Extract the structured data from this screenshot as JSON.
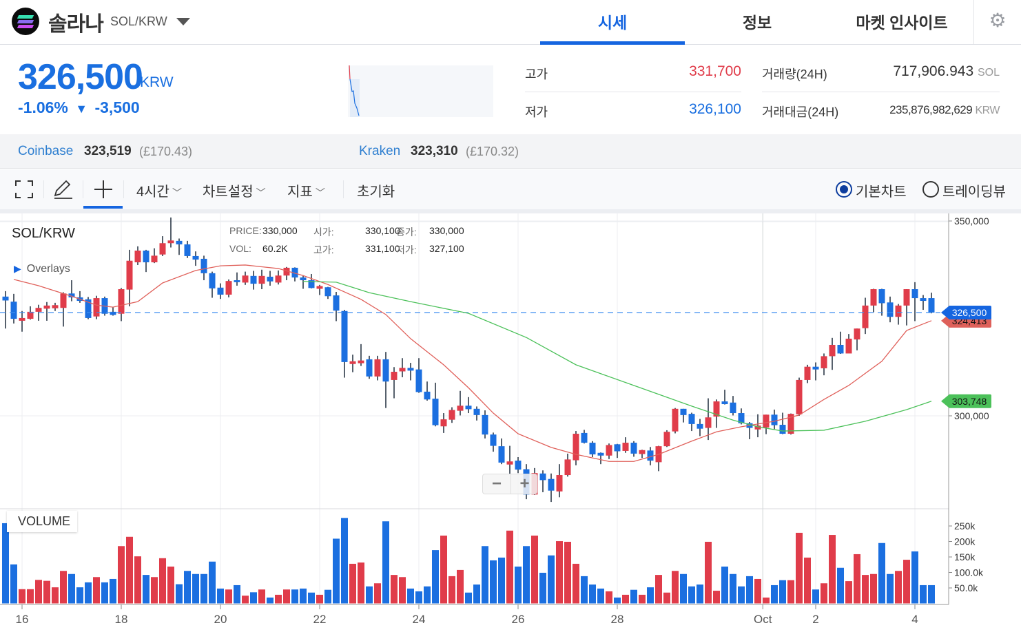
{
  "header": {
    "coin_name": "솔라나",
    "pair": "SOL/KRW",
    "tabs": [
      {
        "label": "시세",
        "active": true
      },
      {
        "label": "정보"
      },
      {
        "label": "마켓 인사이트"
      }
    ],
    "gear_icon": "settings-gear-icon"
  },
  "ticker": {
    "price": "326,500",
    "unit": "KRW",
    "change_pct": "-1.06%",
    "change_arrow": "▼",
    "change_abs": "-3,500",
    "high_label": "고가",
    "high_value": "331,700",
    "low_label": "저가",
    "low_value": "326,100",
    "volume_label": "거래량(24H)",
    "volume_value": "717,906.943",
    "volume_unit": "SOL",
    "turnover_label": "거래대금(24H)",
    "turnover_value": "235,876,982,629",
    "turnover_unit": "KRW"
  },
  "exchanges": [
    {
      "name": "Coinbase",
      "price": "323,519",
      "sub": "(£170.43)"
    },
    {
      "name": "Kraken",
      "price": "323,310",
      "sub": "(£170.32)"
    }
  ],
  "toolbar": {
    "interval": "4시간",
    "chart_settings": "차트설정",
    "indicators": "지표",
    "reset": "초기화",
    "radio_basic": "기본차트",
    "radio_tradingview": "트레이딩뷰",
    "selected": "기본차트"
  },
  "colors": {
    "accent": "#1565e0",
    "up": "#e03c4a",
    "down": "#1b6fe0",
    "ma_short": "#e0605a",
    "ma_long": "#4cc15a"
  },
  "chart_data": {
    "type": "candlestick",
    "symbol": "SOL/KRW",
    "overlays_label": "Overlays",
    "volume_label": "VOLUME",
    "info": {
      "price_k": "PRICE:",
      "price": "330,000",
      "open_k": "시가:",
      "open": "330,100",
      "close_k": "종가:",
      "close": "330,000",
      "vol_k": "VOL:",
      "vol": "60.2K",
      "high_k": "고가:",
      "high": "331,100",
      "low_k": "저가:",
      "low": "327,100"
    },
    "y_ticks": [
      {
        "value": 350000,
        "label": "350,000"
      },
      {
        "value": 300000,
        "label": "300,000"
      }
    ],
    "volume_ticks": [
      {
        "value": 250000,
        "label": "250k"
      },
      {
        "value": 200000,
        "label": "200k"
      },
      {
        "value": 150000,
        "label": "150k"
      },
      {
        "value": 100000,
        "label": "100.0k"
      },
      {
        "value": 50000,
        "label": "50.0k"
      }
    ],
    "x_ticks": [
      {
        "candle": 2,
        "label": "16"
      },
      {
        "candle": 14,
        "label": "18"
      },
      {
        "candle": 26,
        "label": "20"
      },
      {
        "candle": 38,
        "label": "22"
      },
      {
        "candle": 50,
        "label": "24"
      },
      {
        "candle": 62,
        "label": "26"
      },
      {
        "candle": 74,
        "label": "28"
      },
      {
        "candle": 91.6,
        "label": "Oct"
      },
      {
        "candle": 98,
        "label": "2"
      },
      {
        "candle": 110,
        "label": "4"
      }
    ],
    "last_price": {
      "value": 326500,
      "label": "326,500"
    },
    "ma_short_last": {
      "value": 324413,
      "label": "324,413"
    },
    "ma_long_last": {
      "value": 303748,
      "label": "303,748"
    },
    "candles_ohlc": [
      [
        330600,
        332000,
        322400,
        329600
      ],
      [
        329300,
        331300,
        323700,
        324900
      ],
      [
        324400,
        326900,
        321600,
        325100
      ],
      [
        324900,
        328100,
        324700,
        326700
      ],
      [
        326700,
        328500,
        324400,
        327700
      ],
      [
        327500,
        329200,
        324400,
        328300
      ],
      [
        327600,
        329000,
        326900,
        328400
      ],
      [
        327700,
        331700,
        322900,
        331400
      ],
      [
        331400,
        334800,
        329400,
        330400
      ],
      [
        330400,
        332000,
        329000,
        329500
      ],
      [
        329900,
        330500,
        324800,
        325100
      ],
      [
        325500,
        330800,
        324800,
        330200
      ],
      [
        330200,
        330600,
        325700,
        326200
      ],
      [
        326700,
        327900,
        325700,
        325900
      ],
      [
        326200,
        332800,
        324300,
        332500
      ],
      [
        332400,
        342600,
        328100,
        339800
      ],
      [
        339400,
        343500,
        338700,
        342400
      ],
      [
        342400,
        342600,
        336900,
        339400
      ],
      [
        339400,
        343000,
        339200,
        341100
      ],
      [
        341400,
        346100,
        341000,
        344300
      ],
      [
        344300,
        350900,
        343200,
        345000
      ],
      [
        344900,
        345500,
        341300,
        344000
      ],
      [
        344000,
        344900,
        340500,
        341000
      ],
      [
        341000,
        342200,
        338500,
        340100
      ],
      [
        340300,
        341100,
        334800,
        336600
      ],
      [
        336600,
        337000,
        330300,
        332700
      ],
      [
        332900,
        334000,
        330000,
        331100
      ],
      [
        331100,
        335000,
        330400,
        334600
      ],
      [
        334800,
        336800,
        333400,
        334300
      ],
      [
        334200,
        337000,
        333600,
        336000
      ],
      [
        335900,
        337200,
        332400,
        333900
      ],
      [
        333900,
        337500,
        332500,
        335900
      ],
      [
        335700,
        337200,
        333400,
        334500
      ],
      [
        334200,
        337300,
        333700,
        336000
      ],
      [
        336000,
        338200,
        334800,
        338000
      ],
      [
        338000,
        338100,
        334500,
        335500
      ],
      [
        335500,
        335900,
        332600,
        334800
      ],
      [
        334800,
        336400,
        332700,
        332800
      ],
      [
        332600,
        333600,
        331000,
        333300
      ],
      [
        333000,
        333100,
        330000,
        330700
      ],
      [
        330900,
        331800,
        324300,
        327000
      ],
      [
        326900,
        327200,
        309800,
        313800
      ],
      [
        313300,
        315700,
        311200,
        314000
      ],
      [
        313500,
        318400,
        312800,
        314200
      ],
      [
        314500,
        315400,
        309500,
        310100
      ],
      [
        310100,
        315400,
        309100,
        314500
      ],
      [
        314500,
        316400,
        302000,
        308800
      ],
      [
        309200,
        312500,
        304500,
        311300
      ],
      [
        311400,
        314800,
        309900,
        312300
      ],
      [
        312300,
        313600,
        309100,
        311600
      ],
      [
        311900,
        314800,
        305900,
        306100
      ],
      [
        306200,
        308800,
        303900,
        304200
      ],
      [
        304400,
        308500,
        297300,
        297600
      ],
      [
        297300,
        300700,
        295600,
        299100
      ],
      [
        299000,
        302200,
        298200,
        301500
      ],
      [
        301300,
        306400,
        300100,
        302600
      ],
      [
        302600,
        304800,
        300700,
        301700
      ],
      [
        301800,
        302400,
        298800,
        300200
      ],
      [
        300200,
        301400,
        294200,
        295200
      ],
      [
        295200,
        295700,
        290800,
        292300
      ],
      [
        292200,
        294200,
        287600,
        288000
      ],
      [
        287500,
        292300,
        285000,
        288300
      ],
      [
        288500,
        289400,
        285300,
        286200
      ],
      [
        286300,
        287600,
        278600,
        279800
      ],
      [
        279800,
        286600,
        279700,
        285300
      ],
      [
        285200,
        286000,
        280400,
        283500
      ],
      [
        283800,
        285200,
        277900,
        280800
      ],
      [
        280600,
        287600,
        279100,
        284800
      ],
      [
        284800,
        290300,
        284400,
        288800
      ],
      [
        288600,
        296100,
        287300,
        295400
      ],
      [
        295600,
        296400,
        292900,
        293100
      ],
      [
        293100,
        293500,
        289400,
        290100
      ],
      [
        290500,
        290600,
        287600,
        289800
      ],
      [
        289800,
        292900,
        288900,
        292500
      ],
      [
        292700,
        292800,
        289200,
        290900
      ],
      [
        291000,
        294500,
        290500,
        293100
      ],
      [
        293100,
        293500,
        289500,
        290300
      ],
      [
        290200,
        291300,
        289200,
        291200
      ],
      [
        291100,
        292000,
        287300,
        288500
      ],
      [
        288100,
        292300,
        285800,
        292200
      ],
      [
        292200,
        296300,
        292000,
        295900
      ],
      [
        296000,
        302000,
        295500,
        301800
      ],
      [
        301800,
        301800,
        298300,
        300200
      ],
      [
        300500,
        300800,
        296100,
        297900
      ],
      [
        297900,
        299200,
        294800,
        296700
      ],
      [
        296900,
        304500,
        293800,
        299600
      ],
      [
        299800,
        304200,
        296900,
        303700
      ],
      [
        303700,
        306700,
        302900,
        303000
      ],
      [
        303400,
        305100,
        300100,
        300700
      ],
      [
        300700,
        301900,
        297800,
        298100
      ],
      [
        298100,
        298400,
        294000,
        296900
      ],
      [
        296500,
        300400,
        294500,
        297500
      ],
      [
        297000,
        300300,
        295300,
        300300
      ],
      [
        300300,
        301600,
        296600,
        297600
      ],
      [
        297700,
        300800,
        295300,
        295400
      ],
      [
        295400,
        300600,
        295200,
        300500
      ],
      [
        300400,
        309800,
        300000,
        309200
      ],
      [
        309200,
        313100,
        308400,
        312600
      ],
      [
        312600,
        313700,
        309100,
        311900
      ],
      [
        312200,
        316000,
        310400,
        315300
      ],
      [
        315300,
        320000,
        311800,
        318200
      ],
      [
        318200,
        321600,
        315900,
        316000
      ],
      [
        316000,
        321000,
        316100,
        319800
      ],
      [
        319600,
        322400,
        316800,
        322400
      ],
      [
        322500,
        330300,
        321000,
        328300
      ],
      [
        328300,
        332600,
        326600,
        332500
      ],
      [
        332500,
        332600,
        325700,
        328900
      ],
      [
        329100,
        330600,
        324000,
        325400
      ],
      [
        325400,
        328700,
        323400,
        328300
      ],
      [
        328300,
        332500,
        323200,
        332500
      ],
      [
        332500,
        334300,
        324300,
        330200
      ],
      [
        330200,
        331000,
        327200,
        329500
      ],
      [
        330200,
        331600,
        326300,
        326500
      ]
    ],
    "volume": [
      259000,
      126000,
      46000,
      46000,
      76000,
      73000,
      52000,
      105000,
      95000,
      52000,
      68000,
      85000,
      68000,
      79000,
      185000,
      215000,
      152000,
      92000,
      85000,
      146000,
      119000,
      62000,
      105000,
      95000,
      95000,
      135000,
      48000,
      45000,
      59000,
      25000,
      36000,
      45000,
      19000,
      28000,
      45000,
      45000,
      48000,
      35000,
      28000,
      44000,
      209000,
      276000,
      128000,
      132000,
      55000,
      65000,
      265000,
      92000,
      85000,
      48000,
      39000,
      55000,
      172000,
      219000,
      88000,
      108000,
      35000,
      61000,
      185000,
      139000,
      148000,
      235000,
      119000,
      185000,
      219000,
      99000,
      155000,
      201000,
      199000,
      128000,
      88000,
      61000,
      48000,
      39000,
      19000,
      28000,
      44000,
      28000,
      52000,
      92000,
      35000,
      105000,
      95000,
      55000,
      61000,
      199000,
      41000,
      119000,
      95000,
      55000,
      88000,
      79000,
      19000,
      59000,
      75000,
      75000,
      228000,
      148000,
      45000,
      65000,
      221000,
      115000,
      72000,
      159000,
      92000,
      95000,
      195000,
      95000,
      105000,
      141000,
      168000,
      59000,
      59000
    ],
    "ma_short": [
      [
        1,
        335000
      ],
      [
        4,
        333400
      ],
      [
        8,
        330700
      ],
      [
        11,
        328400
      ],
      [
        13,
        327900
      ],
      [
        16,
        329300
      ],
      [
        19,
        334100
      ],
      [
        23,
        337300
      ],
      [
        26,
        338500
      ],
      [
        29,
        338700
      ],
      [
        33,
        337800
      ],
      [
        36,
        336000
      ],
      [
        39,
        333700
      ],
      [
        43,
        329900
      ],
      [
        46,
        326000
      ],
      [
        49,
        319800
      ],
      [
        53,
        313100
      ],
      [
        56,
        307200
      ],
      [
        59,
        300700
      ],
      [
        62,
        295400
      ],
      [
        66,
        291900
      ],
      [
        69,
        290100
      ],
      [
        73,
        288300
      ],
      [
        76,
        288300
      ],
      [
        79,
        290100
      ],
      [
        83,
        293500
      ],
      [
        86,
        295900
      ],
      [
        89,
        297200
      ],
      [
        93,
        298600
      ],
      [
        96,
        300200
      ],
      [
        99,
        304200
      ],
      [
        102,
        307800
      ],
      [
        106,
        314000
      ],
      [
        109,
        321900
      ],
      [
        112,
        324413
      ]
    ],
    "ma_long": [
      [
        36,
        334500
      ],
      [
        40,
        334300
      ],
      [
        44,
        331600
      ],
      [
        49,
        329300
      ],
      [
        56,
        326300
      ],
      [
        63,
        320100
      ],
      [
        69,
        313100
      ],
      [
        76,
        307800
      ],
      [
        83,
        302500
      ],
      [
        88,
        298900
      ],
      [
        91,
        297200
      ],
      [
        94,
        296100
      ],
      [
        99,
        296300
      ],
      [
        104,
        298600
      ],
      [
        109,
        301600
      ],
      [
        112,
        303748
      ]
    ],
    "grid": true
  }
}
